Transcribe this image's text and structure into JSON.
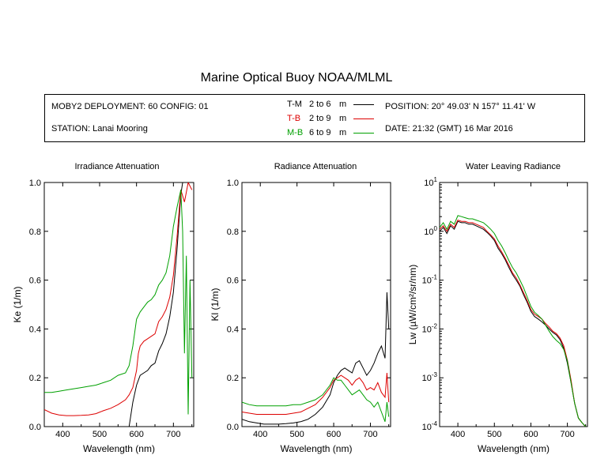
{
  "title": "Marine Optical Buoy NOAA/MLML",
  "info": {
    "deployment": "MOBY2 DEPLOYMENT: 60 CONFIG: 01",
    "station": "STATION: Lanai Mooring",
    "position": "POSITION: 20° 49.03' N   157° 11.41' W",
    "date": "DATE: 21:32 (GMT) 16 Mar 2016",
    "legend": [
      {
        "label": "T-M",
        "range": "2 to 6",
        "unit": "m",
        "color": "#000000"
      },
      {
        "label": "T-B",
        "range": "2 to 9",
        "unit": "m",
        "color": "#dd0000"
      },
      {
        "label": "M-B",
        "range": "6 to 9",
        "unit": "m",
        "color": "#00a000"
      }
    ]
  },
  "chart_data": [
    {
      "type": "line",
      "title": "Irradiance Attenuation",
      "xlabel": "Wavelength (nm)",
      "ylabel": "Ke  (1/m)",
      "xlim": [
        350,
        755
      ],
      "ylim": [
        0,
        1
      ],
      "xticks": [
        "400",
        "500",
        "600",
        "700"
      ],
      "yticks": [
        "0.0",
        "0.2",
        "0.4",
        "0.6",
        "0.8",
        "1.0"
      ],
      "series": [
        {
          "name": "T-M",
          "color": "#000000",
          "x": [
            580,
            590,
            600,
            610,
            620,
            630,
            640,
            650,
            660,
            670,
            680,
            690,
            700,
            710,
            720,
            725
          ],
          "y": [
            0.0,
            0.1,
            0.17,
            0.21,
            0.22,
            0.23,
            0.25,
            0.26,
            0.31,
            0.34,
            0.38,
            0.45,
            0.55,
            0.73,
            0.95,
            1.0
          ]
        },
        {
          "name": "T-B",
          "color": "#dd0000",
          "x": [
            350,
            370,
            390,
            410,
            430,
            450,
            470,
            490,
            510,
            530,
            550,
            570,
            580,
            590,
            600,
            605,
            610,
            620,
            630,
            640,
            650,
            660,
            670,
            680,
            690,
            700,
            710,
            720,
            730,
            740,
            750
          ],
          "y": [
            0.07,
            0.055,
            0.048,
            0.045,
            0.045,
            0.046,
            0.048,
            0.053,
            0.065,
            0.075,
            0.09,
            0.11,
            0.13,
            0.16,
            0.23,
            0.3,
            0.33,
            0.35,
            0.36,
            0.37,
            0.38,
            0.43,
            0.45,
            0.48,
            0.53,
            0.62,
            0.78,
            0.97,
            0.92,
            1.0,
            0.97
          ]
        },
        {
          "name": "M-B",
          "color": "#00a000",
          "x": [
            350,
            370,
            390,
            410,
            430,
            450,
            470,
            490,
            510,
            530,
            550,
            570,
            580,
            590,
            600,
            610,
            620,
            630,
            640,
            650,
            660,
            670,
            680,
            690,
            700,
            710,
            720,
            725,
            730,
            735,
            740,
            745,
            750
          ],
          "y": [
            0.14,
            0.14,
            0.145,
            0.15,
            0.155,
            0.16,
            0.165,
            0.17,
            0.18,
            0.19,
            0.21,
            0.22,
            0.25,
            0.33,
            0.44,
            0.47,
            0.49,
            0.51,
            0.52,
            0.54,
            0.58,
            0.6,
            0.63,
            0.7,
            0.82,
            0.9,
            0.97,
            0.8,
            0.3,
            0.7,
            0.05,
            0.6,
            0.2
          ]
        }
      ]
    },
    {
      "type": "line",
      "title": "Radiance Attenuation",
      "xlabel": "Wavelength (nm)",
      "ylabel": "Kl  (1/m)",
      "xlim": [
        350,
        755
      ],
      "ylim": [
        0,
        1
      ],
      "xticks": [
        "400",
        "500",
        "600",
        "700"
      ],
      "yticks": [
        "0.0",
        "0.2",
        "0.4",
        "0.6",
        "0.8",
        "1.0"
      ],
      "series": [
        {
          "name": "T-M",
          "color": "#000000",
          "x": [
            350,
            370,
            390,
            410,
            430,
            450,
            470,
            490,
            510,
            530,
            550,
            570,
            590,
            600,
            610,
            620,
            630,
            640,
            650,
            660,
            670,
            680,
            690,
            700,
            710,
            720,
            730,
            740,
            745,
            750
          ],
          "y": [
            0.03,
            0.02,
            0.015,
            0.01,
            0.01,
            0.01,
            0.012,
            0.015,
            0.02,
            0.03,
            0.05,
            0.08,
            0.13,
            0.18,
            0.21,
            0.23,
            0.24,
            0.23,
            0.22,
            0.26,
            0.27,
            0.24,
            0.21,
            0.23,
            0.26,
            0.3,
            0.33,
            0.28,
            0.55,
            0.4
          ]
        },
        {
          "name": "T-B",
          "color": "#dd0000",
          "x": [
            350,
            370,
            390,
            410,
            430,
            450,
            470,
            490,
            510,
            530,
            550,
            570,
            590,
            600,
            610,
            620,
            630,
            640,
            650,
            660,
            670,
            680,
            690,
            700,
            710,
            720,
            730,
            740,
            745,
            750
          ],
          "y": [
            0.06,
            0.055,
            0.05,
            0.05,
            0.05,
            0.05,
            0.05,
            0.055,
            0.06,
            0.075,
            0.09,
            0.12,
            0.16,
            0.19,
            0.2,
            0.21,
            0.2,
            0.19,
            0.17,
            0.19,
            0.2,
            0.18,
            0.15,
            0.16,
            0.15,
            0.18,
            0.14,
            0.12,
            0.22,
            0.1
          ]
        },
        {
          "name": "M-B",
          "color": "#00a000",
          "x": [
            350,
            370,
            390,
            410,
            430,
            450,
            470,
            490,
            510,
            530,
            550,
            570,
            590,
            600,
            610,
            620,
            630,
            640,
            650,
            660,
            670,
            680,
            690,
            700,
            710,
            720,
            730,
            740,
            745,
            750
          ],
          "y": [
            0.1,
            0.09,
            0.085,
            0.085,
            0.085,
            0.085,
            0.085,
            0.09,
            0.09,
            0.1,
            0.11,
            0.13,
            0.17,
            0.2,
            0.19,
            0.19,
            0.17,
            0.15,
            0.13,
            0.14,
            0.15,
            0.13,
            0.11,
            0.1,
            0.08,
            0.1,
            0.06,
            0.02,
            0.1,
            0.04
          ]
        }
      ]
    },
    {
      "type": "line",
      "title": "Water Leaving Radiance",
      "xlabel": "Wavelength (nm)",
      "ylabel": "Lw  (µW/cm²/sr/nm)",
      "xlim": [
        350,
        755
      ],
      "ylim": [
        0.0001,
        10
      ],
      "yscale": "log",
      "xticks": [
        "400",
        "500",
        "600",
        "700"
      ],
      "ytick_labels": [
        {
          "base": "10",
          "exp": "-4"
        },
        {
          "base": "10",
          "exp": "-3"
        },
        {
          "base": "10",
          "exp": "-2"
        },
        {
          "base": "10",
          "exp": "-1"
        },
        {
          "base": "10",
          "exp": "0"
        },
        {
          "base": "10",
          "exp": "1"
        }
      ],
      "series": [
        {
          "name": "T-M",
          "color": "#000000",
          "x": [
            350,
            360,
            370,
            380,
            390,
            400,
            410,
            420,
            430,
            440,
            450,
            460,
            470,
            480,
            490,
            500,
            510,
            520,
            530,
            540,
            550,
            560,
            570,
            580,
            590,
            600,
            610,
            620,
            630,
            640,
            650,
            660,
            670,
            680,
            690,
            700,
            710,
            720,
            730,
            740,
            750
          ],
          "y": [
            1.0,
            1.2,
            0.9,
            1.3,
            1.1,
            1.6,
            1.5,
            1.5,
            1.4,
            1.4,
            1.3,
            1.2,
            1.1,
            0.95,
            0.8,
            0.65,
            0.45,
            0.35,
            0.26,
            0.18,
            0.13,
            0.1,
            0.075,
            0.05,
            0.035,
            0.023,
            0.018,
            0.016,
            0.014,
            0.012,
            0.01,
            0.0085,
            0.0075,
            0.006,
            0.004,
            0.002,
            0.0008,
            0.0003,
            0.00015,
            0.00012,
            0.0001
          ]
        },
        {
          "name": "T-B",
          "color": "#dd0000",
          "x": [
            350,
            360,
            370,
            380,
            390,
            400,
            410,
            420,
            430,
            440,
            450,
            460,
            470,
            480,
            490,
            500,
            510,
            520,
            530,
            540,
            550,
            560,
            570,
            580,
            590,
            600,
            610,
            620,
            630,
            640,
            650,
            660,
            670,
            680,
            690,
            700,
            710,
            720,
            730,
            740,
            750
          ],
          "y": [
            1.1,
            1.3,
            1.0,
            1.4,
            1.2,
            1.7,
            1.6,
            1.6,
            1.5,
            1.5,
            1.4,
            1.3,
            1.2,
            1.0,
            0.85,
            0.7,
            0.5,
            0.38,
            0.28,
            0.2,
            0.14,
            0.11,
            0.08,
            0.055,
            0.038,
            0.025,
            0.02,
            0.018,
            0.016,
            0.013,
            0.011,
            0.009,
            0.008,
            0.0065,
            0.0045,
            0.0023,
            0.0009,
            0.0003,
            0.00015,
            0.00012,
            0.0001
          ]
        },
        {
          "name": "M-B",
          "color": "#00a000",
          "x": [
            350,
            360,
            370,
            380,
            390,
            400,
            410,
            420,
            430,
            440,
            450,
            460,
            470,
            480,
            490,
            500,
            510,
            520,
            530,
            540,
            550,
            560,
            570,
            580,
            590,
            600,
            610,
            620,
            630,
            640,
            650,
            660,
            670,
            680,
            690,
            700,
            710,
            720,
            730,
            740,
            750
          ],
          "y": [
            1.2,
            1.5,
            1.1,
            1.6,
            1.4,
            2.1,
            2.0,
            1.9,
            1.8,
            1.8,
            1.7,
            1.6,
            1.5,
            1.3,
            1.1,
            0.9,
            0.65,
            0.5,
            0.36,
            0.25,
            0.18,
            0.14,
            0.1,
            0.07,
            0.045,
            0.029,
            0.022,
            0.019,
            0.016,
            0.012,
            0.009,
            0.007,
            0.0058,
            0.005,
            0.0038,
            0.0022,
            0.0008,
            0.0003,
            0.00015,
            0.00012,
            0.0001
          ]
        }
      ]
    }
  ]
}
